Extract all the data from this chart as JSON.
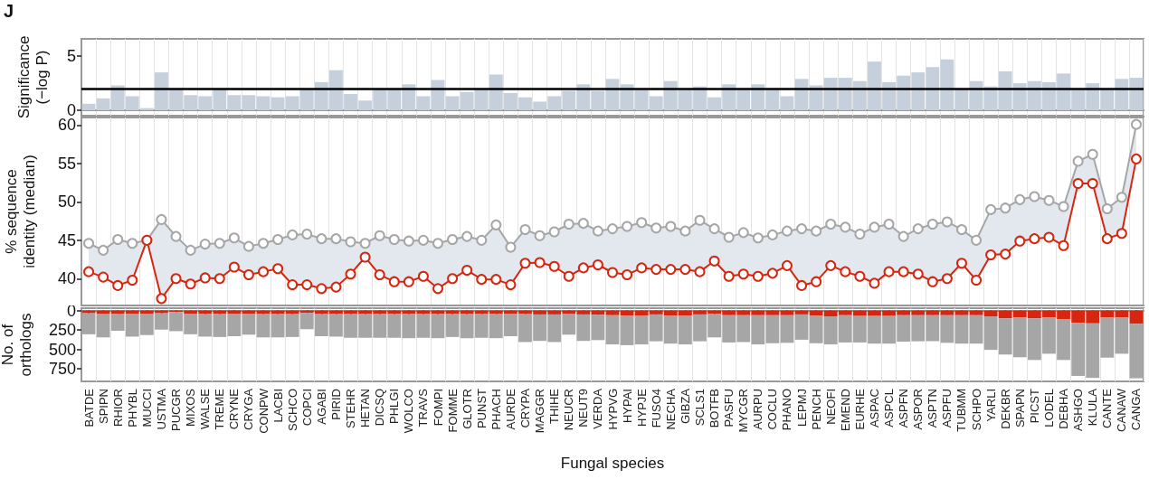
{
  "chart_data": [
    {
      "type": "bar",
      "ylabel": "Significance\n(−log P)",
      "annotations": [
        "J"
      ],
      "categories": [
        "BATDE",
        "SPIPN",
        "RHIOR",
        "PHYBL",
        "MUCCI",
        "USTMA",
        "PUCGR",
        "MIXOS",
        "WALSE",
        "TREME",
        "CRYNE",
        "CRYGA",
        "CONPW",
        "LACBI",
        "SCHCO",
        "COPCI",
        "AGABI",
        "PIRID",
        "STEHR",
        "HETAN",
        "DICSQ",
        "PHLGI",
        "WOLCO",
        "TRAVS",
        "FOMPI",
        "FOMME",
        "GLOTR",
        "PUNST",
        "PHACH",
        "AURDE",
        "CRYPA",
        "MAGGR",
        "THIHE",
        "NEUCR",
        "NEUT9",
        "VERDA",
        "HYPVG",
        "HYPAI",
        "HYPJE",
        "FUSO4",
        "NECHA",
        "GIBZA",
        "SCLS1",
        "BOTFB",
        "PASFU",
        "MYCGR",
        "AURPU",
        "COCLU",
        "PHANO",
        "LEPMJ",
        "PENCH",
        "NEOFI",
        "EMEND",
        "EURHE",
        "ASPAC",
        "ASPCL",
        "ASPFN",
        "ASPOR",
        "ASPTN",
        "ASPFU",
        "TUBMM",
        "SCHPO",
        "YARLI",
        "DEKBR",
        "SPAPN",
        "PICST",
        "LODEL",
        "DEBHA",
        "ASHGO",
        "KLULA",
        "CANTE",
        "CANAW",
        "CANGA"
      ],
      "values": [
        0.6,
        1.1,
        2.3,
        1.3,
        0.2,
        3.5,
        2.0,
        1.4,
        1.3,
        2.0,
        1.4,
        1.4,
        1.3,
        1.2,
        1.3,
        2.0,
        2.6,
        3.7,
        1.5,
        0.9,
        2.0,
        2.0,
        2.4,
        1.3,
        2.8,
        1.3,
        1.7,
        1.9,
        3.3,
        1.6,
        1.2,
        0.8,
        1.3,
        1.8,
        2.4,
        1.8,
        2.9,
        2.4,
        1.9,
        1.3,
        2.7,
        1.9,
        2.2,
        1.2,
        2.4,
        1.9,
        2.4,
        1.9,
        1.3,
        2.9,
        2.3,
        3.0,
        3.0,
        2.7,
        4.5,
        2.6,
        3.2,
        3.5,
        4.0,
        4.7,
        2.0,
        2.7,
        2.2,
        3.6,
        2.5,
        2.7,
        2.6,
        3.4,
        1.9,
        2.5,
        1.9,
        2.9,
        3.0
      ],
      "color": "#c5d0dc",
      "ylim": [
        -0.5,
        6.6
      ],
      "yticks": [
        0,
        5
      ],
      "ref_lines": [
        {
          "axis": "y",
          "value": 2,
          "color": "#000000"
        }
      ],
      "grid": "x",
      "tick_labels": "y"
    },
    {
      "type": "line",
      "ylabel": "% sequence\nidentity (median)",
      "categories": [
        "BATDE",
        "SPIPN",
        "RHIOR",
        "PHYBL",
        "MUCCI",
        "USTMA",
        "PUCGR",
        "MIXOS",
        "WALSE",
        "TREME",
        "CRYNE",
        "CRYGA",
        "CONPW",
        "LACBI",
        "SCHCO",
        "COPCI",
        "AGABI",
        "PIRID",
        "STEHR",
        "HETAN",
        "DICSQ",
        "PHLGI",
        "WOLCO",
        "TRAVS",
        "FOMPI",
        "FOMME",
        "GLOTR",
        "PUNST",
        "PHACH",
        "AURDE",
        "CRYPA",
        "MAGGR",
        "THIHE",
        "NEUCR",
        "NEUT9",
        "VERDA",
        "HYPVG",
        "HYPAI",
        "HYPJE",
        "FUSO4",
        "NECHA",
        "GIBZA",
        "SCLS1",
        "BOTFB",
        "PASFU",
        "MYCGR",
        "AURPU",
        "COCLU",
        "PHANO",
        "LEPMJ",
        "PENCH",
        "NEOFI",
        "EMEND",
        "EURHE",
        "ASPAC",
        "ASPCL",
        "ASPFN",
        "ASPOR",
        "ASPTN",
        "ASPFU",
        "TUBMM",
        "SCHPO",
        "YARLI",
        "DEKBR",
        "SPAPN",
        "PICST",
        "LODEL",
        "DEBHA",
        "ASHGO",
        "KLULA",
        "CANTE",
        "CANAW",
        "CANGA"
      ],
      "series": [
        {
          "color": "#a6a6a6",
          "values": [
            44.6,
            43.7,
            45.1,
            44.6,
            45.0,
            47.7,
            45.5,
            43.7,
            44.5,
            44.6,
            45.3,
            44.2,
            44.6,
            45.1,
            45.7,
            45.8,
            45.2,
            45.2,
            44.8,
            44.6,
            45.6,
            45.1,
            44.9,
            45.0,
            44.6,
            45.1,
            45.5,
            45.0,
            47.0,
            44.1,
            46.4,
            45.6,
            46.1,
            47.1,
            47.2,
            46.2,
            46.5,
            46.8,
            47.3,
            46.6,
            46.8,
            46.2,
            47.6,
            46.5,
            45.4,
            46.0,
            45.3,
            45.7,
            46.2,
            46.5,
            46.2,
            47.1,
            46.7,
            45.8,
            46.7,
            47.1,
            45.5,
            46.5,
            47.1,
            47.4,
            46.4,
            45.0,
            49.0,
            49.2,
            50.3,
            50.7,
            50.2,
            49.4,
            55.3,
            56.2,
            49.1,
            50.6,
            60.1
          ],
          "lower": [
            40.9,
            40.2,
            39.1,
            39.8,
            45.0,
            37.4,
            40.0,
            39.3,
            40.1,
            40.0,
            41.5,
            40.5,
            40.9,
            41.3,
            39.2,
            39.2,
            38.7,
            38.9,
            40.6,
            42.8,
            40.5,
            39.6,
            39.6,
            40.3,
            38.7,
            40.0,
            41.1,
            39.9,
            39.9,
            39.2,
            42.0,
            42.1,
            41.6,
            40.3,
            41.4,
            41.8,
            40.8,
            40.5,
            41.4,
            41.2,
            41.2,
            41.2,
            40.9,
            42.3,
            40.3,
            40.6,
            40.3,
            40.7,
            41.7,
            39.1,
            39.6,
            41.7,
            40.9,
            40.3,
            39.4,
            40.9,
            40.9,
            40.6,
            39.6,
            40.0,
            42.0,
            39.8,
            43.1,
            43.2,
            44.9,
            45.2,
            45.4,
            44.3,
            52.4,
            52.4,
            45.2,
            45.9,
            55.6
          ],
          "upper": [
            44.6,
            43.7,
            45.1,
            44.6,
            45.0,
            47.7,
            45.5,
            43.7,
            44.5,
            44.6,
            45.3,
            44.2,
            44.6,
            45.1,
            45.7,
            45.8,
            45.2,
            45.2,
            44.8,
            44.6,
            45.6,
            45.1,
            44.9,
            45.0,
            44.6,
            45.1,
            45.5,
            45.0,
            47.0,
            44.1,
            46.4,
            45.6,
            46.1,
            47.1,
            47.2,
            46.2,
            46.5,
            46.8,
            47.3,
            46.6,
            46.8,
            46.2,
            47.6,
            46.5,
            45.4,
            46.0,
            45.3,
            45.7,
            46.2,
            46.5,
            46.2,
            47.1,
            46.7,
            45.8,
            46.7,
            47.1,
            45.5,
            46.5,
            47.1,
            47.4,
            46.4,
            45.0,
            49.0,
            49.2,
            50.3,
            50.7,
            50.2,
            49.4,
            55.3,
            56.2,
            49.1,
            50.6,
            60.1
          ]
        },
        {
          "color": "#d62610",
          "values": [
            40.9,
            40.2,
            39.1,
            39.8,
            45.0,
            37.4,
            40.0,
            39.3,
            40.1,
            40.0,
            41.5,
            40.5,
            40.9,
            41.3,
            39.2,
            39.2,
            38.7,
            38.9,
            40.6,
            42.8,
            40.5,
            39.6,
            39.6,
            40.3,
            38.7,
            40.0,
            41.1,
            39.9,
            39.9,
            39.2,
            42.0,
            42.1,
            41.6,
            40.3,
            41.4,
            41.8,
            40.8,
            40.5,
            41.4,
            41.2,
            41.2,
            41.2,
            40.9,
            42.3,
            40.3,
            40.6,
            40.3,
            40.7,
            41.7,
            39.1,
            39.6,
            41.7,
            40.9,
            40.3,
            39.4,
            40.9,
            40.9,
            40.6,
            39.6,
            40.0,
            42.0,
            39.8,
            43.1,
            43.2,
            44.9,
            45.2,
            45.4,
            44.3,
            52.4,
            52.4,
            45.2,
            45.9,
            55.6
          ]
        }
      ],
      "ylim": [
        36.5,
        61
      ],
      "yticks": [
        40,
        45,
        50,
        55,
        60
      ],
      "marker": "circle",
      "grid": "x",
      "tick_labels": "y"
    },
    {
      "type": "bar",
      "stacked": true,
      "ylabel": "No. of\northologs",
      "xlabel": "Fungal species",
      "categories": [
        "BATDE",
        "SPIPN",
        "RHIOR",
        "PHYBL",
        "MUCCI",
        "USTMA",
        "PUCGR",
        "MIXOS",
        "WALSE",
        "TREME",
        "CRYNE",
        "CRYGA",
        "CONPW",
        "LACBI",
        "SCHCO",
        "COPCI",
        "AGABI",
        "PIRID",
        "STEHR",
        "HETAN",
        "DICSQ",
        "PHLGI",
        "WOLCO",
        "TRAVS",
        "FOMPI",
        "FOMME",
        "GLOTR",
        "PUNST",
        "PHACH",
        "AURDE",
        "CRYPA",
        "MAGGR",
        "THIHE",
        "NEUCR",
        "NEUT9",
        "VERDA",
        "HYPVG",
        "HYPAI",
        "HYPJE",
        "FUSO4",
        "NECHA",
        "GIBZA",
        "SCLS1",
        "BOTFB",
        "PASFU",
        "MYCGR",
        "AURPU",
        "COCLU",
        "PHANO",
        "LEPMJ",
        "PENCH",
        "NEOFI",
        "EMEND",
        "EURHE",
        "ASPAC",
        "ASPCL",
        "ASPFN",
        "ASPOR",
        "ASPTN",
        "ASPFU",
        "TUBMM",
        "SCHPO",
        "YARLI",
        "DEKBR",
        "SPAPN",
        "PICST",
        "LODEL",
        "DEBHA",
        "ASHGO",
        "KLULA",
        "CANTE",
        "CANAW",
        "CANGA"
      ],
      "series": [
        {
          "color": "#d62610",
          "values": [
            35,
            40,
            40,
            40,
            40,
            35,
            20,
            40,
            45,
            45,
            40,
            40,
            45,
            45,
            45,
            30,
            45,
            45,
            45,
            45,
            45,
            45,
            45,
            45,
            45,
            45,
            45,
            45,
            45,
            40,
            45,
            50,
            50,
            40,
            50,
            55,
            60,
            65,
            65,
            50,
            65,
            65,
            50,
            45,
            60,
            60,
            60,
            60,
            60,
            50,
            65,
            75,
            60,
            70,
            70,
            70,
            60,
            60,
            60,
            60,
            60,
            60,
            75,
            100,
            90,
            100,
            90,
            110,
            160,
            165,
            90,
            90,
            170
          ]
        },
        {
          "color": "#a6a6a6",
          "values": [
            270,
            305,
            220,
            295,
            275,
            210,
            245,
            265,
            290,
            295,
            290,
            270,
            300,
            300,
            295,
            210,
            285,
            290,
            305,
            305,
            305,
            305,
            310,
            305,
            310,
            295,
            310,
            305,
            310,
            290,
            360,
            340,
            355,
            270,
            340,
            325,
            375,
            380,
            370,
            345,
            360,
            370,
            345,
            300,
            350,
            345,
            375,
            360,
            355,
            325,
            355,
            360,
            350,
            340,
            355,
            355,
            340,
            335,
            335,
            355,
            365,
            365,
            430,
            465,
            510,
            535,
            465,
            525,
            680,
            700,
            515,
            465,
            700
          ]
        }
      ],
      "ylim": [
        910,
        -30
      ],
      "yticks": [
        0,
        250,
        500,
        750
      ],
      "grid": "x"
    }
  ]
}
